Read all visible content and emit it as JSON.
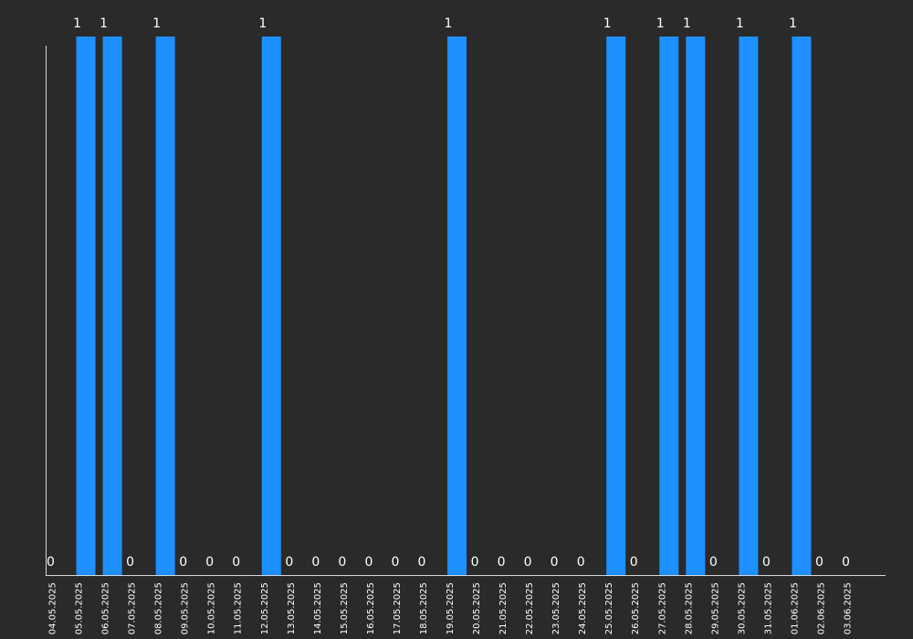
{
  "chart_data": {
    "type": "bar",
    "categories": [
      "04.05.2025",
      "05.05.2025",
      "06.05.2025",
      "07.05.2025",
      "08.05.2025",
      "09.05.2025",
      "10.05.2025",
      "11.05.2025",
      "12.05.2025",
      "13.05.2025",
      "14.05.2025",
      "15.05.2025",
      "16.05.2025",
      "17.05.2025",
      "18.05.2025",
      "19.05.2025",
      "20.05.2025",
      "21.05.2025",
      "22.05.2025",
      "23.05.2025",
      "24.05.2025",
      "25.05.2025",
      "26.05.2025",
      "27.05.2025",
      "28.05.2025",
      "29.05.2025",
      "30.05.2025",
      "31.05.2025",
      "01.06.2025",
      "02.06.2025",
      "03.06.2025"
    ],
    "values": [
      0,
      1,
      1,
      0,
      1,
      0,
      0,
      0,
      1,
      0,
      0,
      0,
      0,
      0,
      0,
      1,
      0,
      0,
      0,
      0,
      0,
      1,
      0,
      1,
      1,
      0,
      1,
      0,
      1,
      0,
      0
    ],
    "ylim": [
      0,
      1
    ],
    "grid": false,
    "colors": {
      "bar": "#1e90ff",
      "background": "#2a2a2a",
      "text": "#ffffff"
    }
  }
}
